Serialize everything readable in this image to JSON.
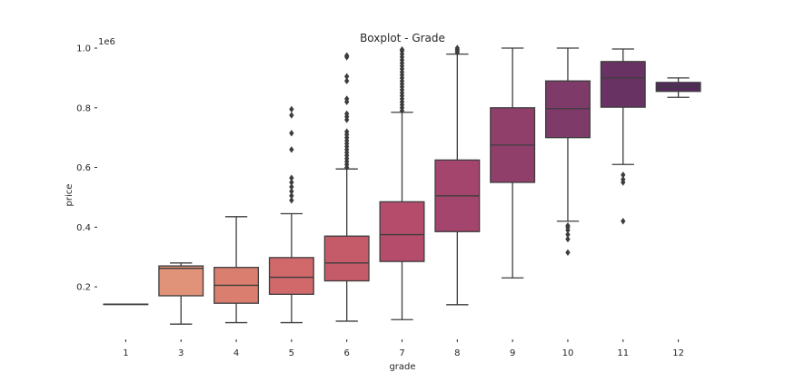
{
  "chart_data": {
    "type": "box",
    "title": "Boxplot - Grade",
    "xlabel": "grade",
    "ylabel": "price",
    "y_offset_label": "1e6",
    "ylim": [
      0.03,
      1.07
    ],
    "yticks": [
      0.2,
      0.4,
      0.6,
      0.8,
      1.0
    ],
    "ytick_labels": [
      "0.2",
      "0.4",
      "0.6",
      "0.8",
      "1.0"
    ],
    "grid": false,
    "categories": [
      "1",
      "3",
      "4",
      "5",
      "6",
      "7",
      "8",
      "9",
      "10",
      "11",
      "12"
    ],
    "boxes": [
      {
        "whislo": 0.142,
        "q1": 0.142,
        "med": 0.142,
        "q3": 0.142,
        "whishi": 0.142,
        "fliers": [],
        "color": "#e8a483"
      },
      {
        "whislo": 0.075,
        "q1": 0.17,
        "med": 0.262,
        "q3": 0.27,
        "whishi": 0.28,
        "fliers": [],
        "color": "#e09379"
      },
      {
        "whislo": 0.08,
        "q1": 0.145,
        "med": 0.205,
        "q3": 0.265,
        "whishi": 0.435,
        "fliers": [],
        "color": "#da7f6f"
      },
      {
        "whislo": 0.08,
        "q1": 0.175,
        "med": 0.232,
        "q3": 0.298,
        "whishi": 0.445,
        "fliers": [
          0.49,
          0.505,
          0.52,
          0.535,
          0.55,
          0.565,
          0.66,
          0.715,
          0.775,
          0.795
        ],
        "color": "#d1696a"
      },
      {
        "whislo": 0.085,
        "q1": 0.22,
        "med": 0.28,
        "q3": 0.37,
        "whishi": 0.595,
        "fliers": [
          0.6,
          0.61,
          0.62,
          0.63,
          0.64,
          0.65,
          0.66,
          0.67,
          0.68,
          0.69,
          0.7,
          0.71,
          0.72,
          0.76,
          0.77,
          0.78,
          0.82,
          0.83,
          0.89,
          0.905,
          0.97,
          0.975
        ],
        "color": "#c55a69"
      },
      {
        "whislo": 0.09,
        "q1": 0.285,
        "med": 0.375,
        "q3": 0.485,
        "whishi": 0.785,
        "fliers": [
          0.79,
          0.8,
          0.81,
          0.82,
          0.83,
          0.84,
          0.85,
          0.86,
          0.87,
          0.88,
          0.89,
          0.9,
          0.91,
          0.92,
          0.93,
          0.94,
          0.95,
          0.96,
          0.97,
          0.98,
          0.99,
          0.995
        ],
        "color": "#b54c6b"
      },
      {
        "whislo": 0.14,
        "q1": 0.385,
        "med": 0.505,
        "q3": 0.625,
        "whishi": 0.98,
        "fliers": [
          0.985,
          0.99,
          0.995,
          1.0
        ],
        "color": "#a3456c"
      },
      {
        "whislo": 0.23,
        "q1": 0.55,
        "med": 0.675,
        "q3": 0.8,
        "whishi": 1.0,
        "fliers": [],
        "color": "#8f3f6a"
      },
      {
        "whislo": 0.42,
        "q1": 0.7,
        "med": 0.797,
        "q3": 0.89,
        "whishi": 1.0,
        "fliers": [
          0.315,
          0.36,
          0.375,
          0.39,
          0.4,
          0.405
        ],
        "color": "#7e3a68"
      },
      {
        "whislo": 0.61,
        "q1": 0.802,
        "med": 0.9,
        "q3": 0.955,
        "whishi": 0.997,
        "fliers": [
          0.42,
          0.55,
          0.56,
          0.575
        ],
        "color": "#683262"
      },
      {
        "whislo": 0.835,
        "q1": 0.855,
        "med": 0.87,
        "q3": 0.885,
        "whishi": 0.9,
        "fliers": [],
        "color": "#542a5b"
      }
    ]
  }
}
